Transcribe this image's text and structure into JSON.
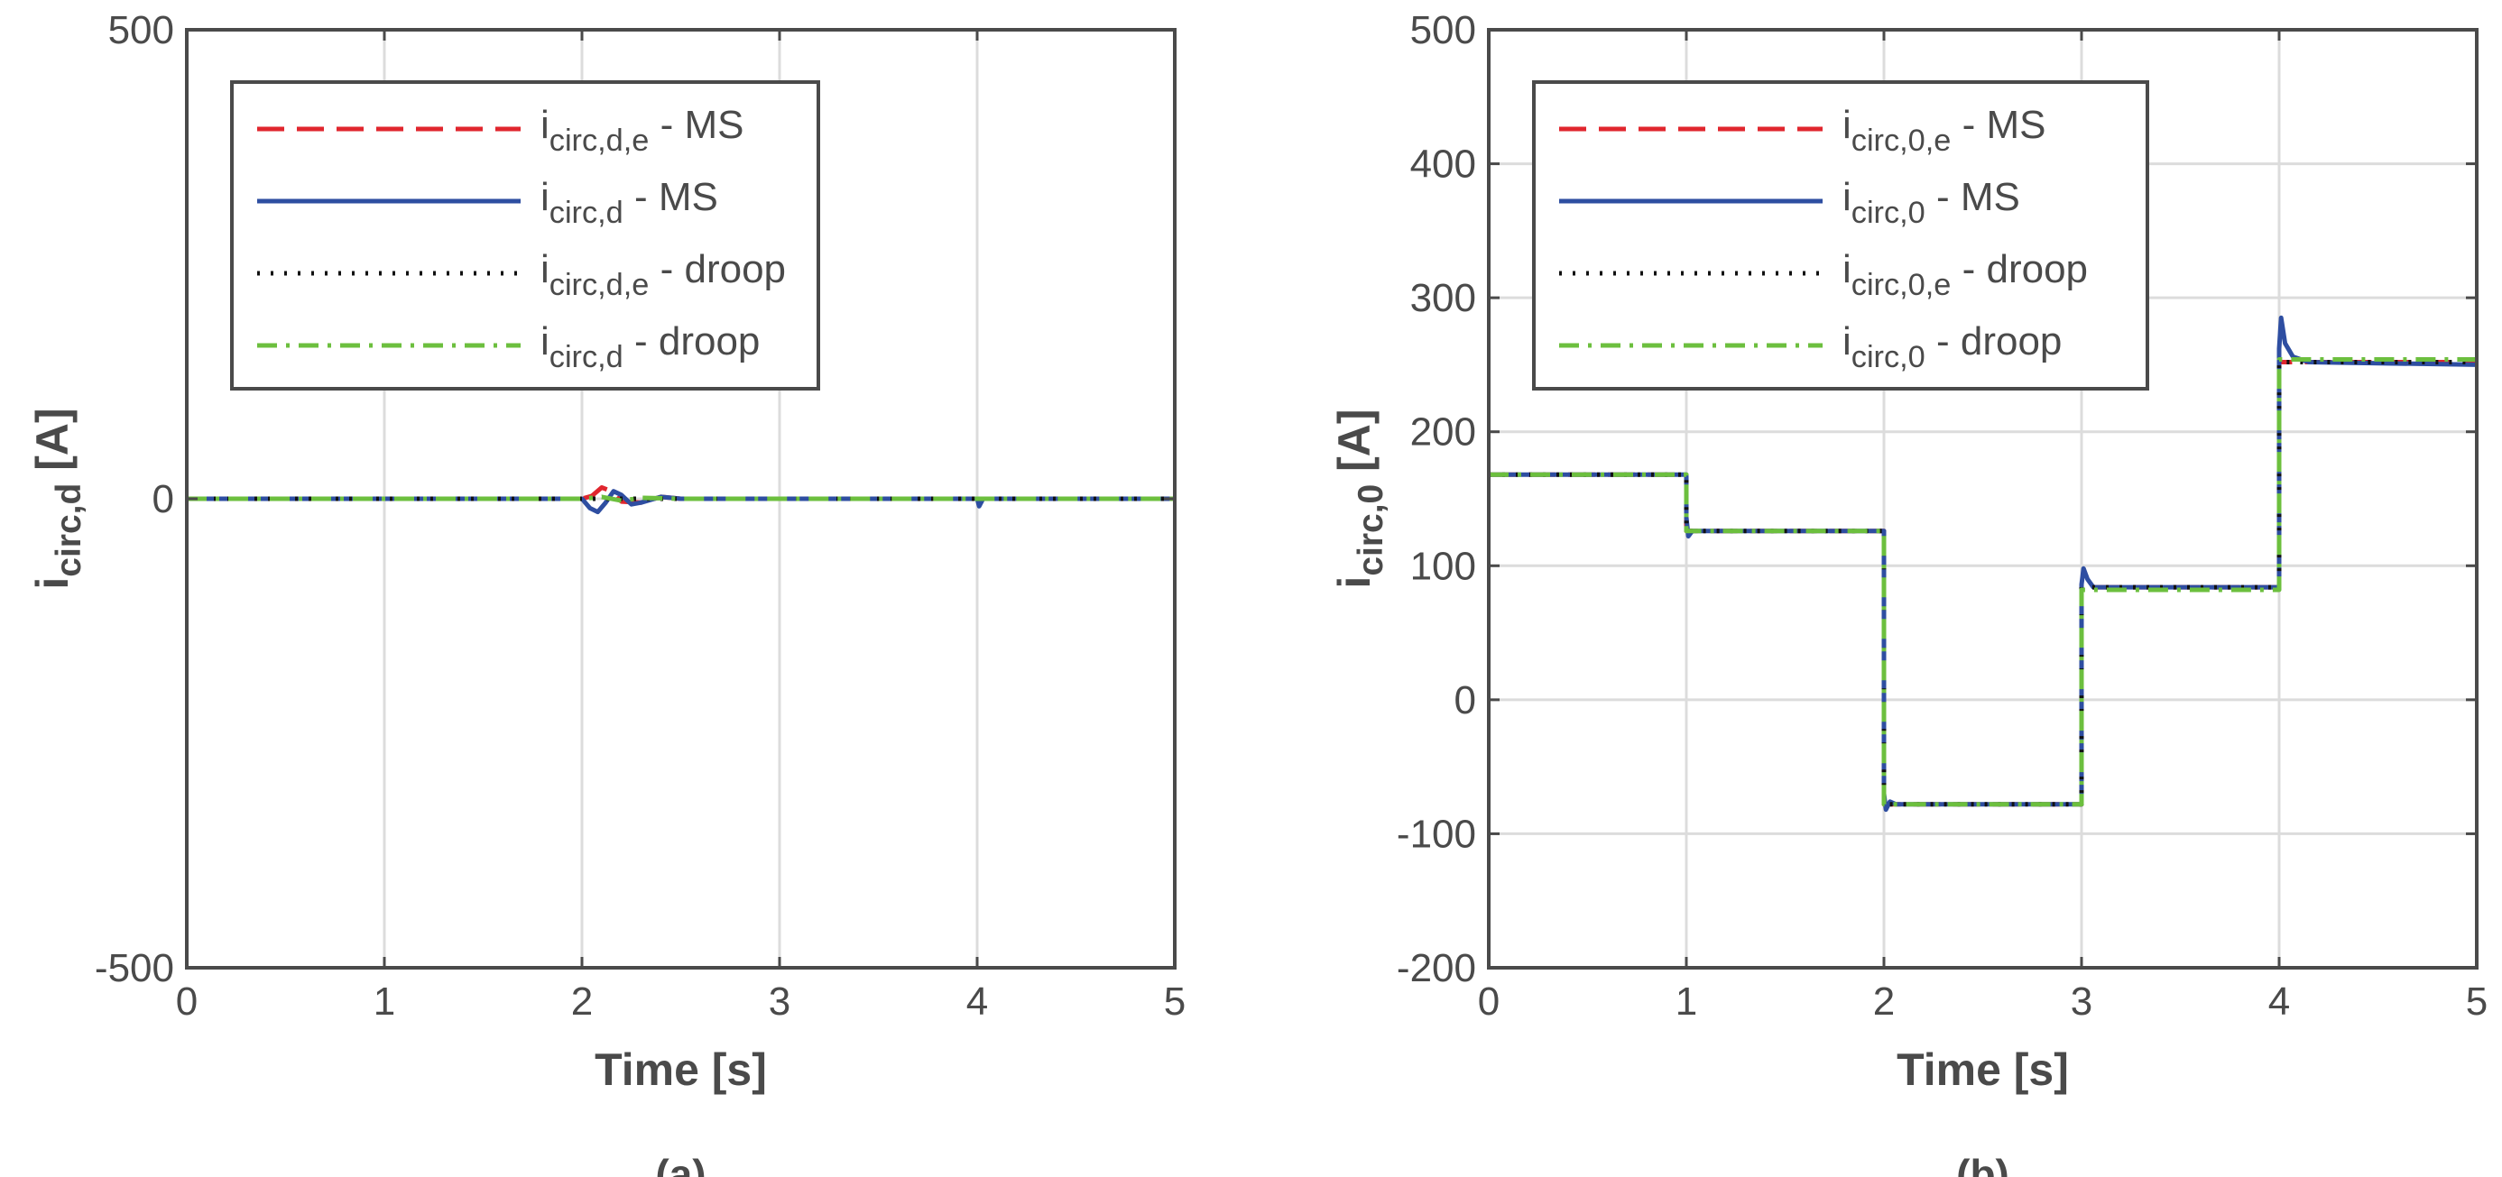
{
  "chart_data": [
    {
      "type": "line",
      "panel_label": "(a)",
      "xlabel": "Time [s]",
      "ylabel": {
        "main": "i",
        "sub": "circ,d",
        "unit": " [A]"
      },
      "xlim": [
        0,
        5
      ],
      "ylim": [
        -500,
        500
      ],
      "xticks": [
        0,
        1,
        2,
        3,
        4,
        5
      ],
      "yticks": [
        -500,
        0,
        500
      ],
      "xtick_labels": [
        "0",
        "1",
        "2",
        "3",
        "4",
        "5"
      ],
      "ytick_labels": [
        "-500",
        "0",
        "500"
      ],
      "grid": true,
      "legend_position": "top-left",
      "series": [
        {
          "name": {
            "main": "i",
            "sub": "circ,d,e",
            "suffix": " - MS"
          },
          "style": "dashed",
          "color": "#e0262e",
          "x": [
            0,
            2.0,
            2.05,
            2.1,
            2.15,
            2.2,
            2.3,
            2.4,
            2.5,
            3.0,
            4.0,
            5.0
          ],
          "y": [
            0,
            0,
            3,
            12,
            8,
            -3,
            -4,
            2,
            0,
            0,
            0,
            0
          ]
        },
        {
          "name": {
            "main": "i",
            "sub": "circ,d",
            "suffix": " - MS"
          },
          "style": "solid",
          "color": "#2e4ea1",
          "x": [
            0,
            2.0,
            2.04,
            2.08,
            2.12,
            2.16,
            2.2,
            2.25,
            2.3,
            2.4,
            2.5,
            3.0,
            4.0,
            4.01,
            4.03,
            5.0
          ],
          "y": [
            0,
            0,
            -10,
            -14,
            -4,
            8,
            4,
            -6,
            -4,
            2,
            0,
            0,
            0,
            -8,
            0,
            0
          ]
        },
        {
          "name": {
            "main": "i",
            "sub": "circ,d,e",
            "suffix": " - droop"
          },
          "style": "dotted",
          "color": "#111111",
          "x": [
            0,
            5
          ],
          "y": [
            0,
            0
          ]
        },
        {
          "name": {
            "main": "i",
            "sub": "circ,d",
            "suffix": " - droop"
          },
          "style": "dashdot",
          "color": "#6cbf3e",
          "x": [
            0,
            2.0,
            2.1,
            2.2,
            2.3,
            2.5,
            5.0
          ],
          "y": [
            0,
            0,
            2,
            -2,
            1,
            0,
            0
          ]
        }
      ]
    },
    {
      "type": "line",
      "panel_label": "(b)",
      "xlabel": "Time [s]",
      "ylabel": {
        "main": "i",
        "sub": "circ,0",
        "unit": " [A]"
      },
      "xlim": [
        0,
        5
      ],
      "ylim": [
        -200,
        500
      ],
      "xticks": [
        0,
        1,
        2,
        3,
        4,
        5
      ],
      "yticks": [
        -200,
        -100,
        0,
        100,
        200,
        300,
        400,
        500
      ],
      "xtick_labels": [
        "0",
        "1",
        "2",
        "3",
        "4",
        "5"
      ],
      "ytick_labels": [
        "-200",
        "-100",
        "0",
        "100",
        "200",
        "300",
        "400",
        "500"
      ],
      "grid": true,
      "legend_position": "top-left",
      "series": [
        {
          "name": {
            "main": "i",
            "sub": "circ,0,e",
            "suffix": " - MS"
          },
          "style": "dashed",
          "color": "#e0262e",
          "x": [
            0,
            1.0,
            1.0,
            2.0,
            2.0,
            3.0,
            3.0,
            4.0,
            4.0,
            5.0
          ],
          "y": [
            168,
            168,
            126,
            126,
            -78,
            -78,
            84,
            84,
            252,
            252
          ]
        },
        {
          "name": {
            "main": "i",
            "sub": "circ,0",
            "suffix": " - MS"
          },
          "style": "solid",
          "color": "#2e4ea1",
          "x": [
            0,
            1.0,
            1.0,
            1.01,
            1.03,
            2.0,
            2.0,
            2.01,
            2.03,
            2.06,
            3.0,
            3.0,
            3.01,
            3.03,
            3.06,
            4.0,
            4.0,
            4.01,
            4.03,
            4.07,
            4.15,
            5.0
          ],
          "y": [
            168,
            168,
            136,
            122,
            126,
            126,
            -70,
            -82,
            -76,
            -78,
            -78,
            86,
            98,
            90,
            84,
            84,
            262,
            285,
            266,
            256,
            252,
            250
          ]
        },
        {
          "name": {
            "main": "i",
            "sub": "circ,0,e",
            "suffix": " - droop"
          },
          "style": "dotted",
          "color": "#111111",
          "x": [
            0,
            1.0,
            1.0,
            2.0,
            2.0,
            3.0,
            3.0,
            4.0,
            4.0,
            5.0
          ],
          "y": [
            168,
            168,
            126,
            126,
            -78,
            -78,
            84,
            84,
            252,
            252
          ]
        },
        {
          "name": {
            "main": "i",
            "sub": "circ,0",
            "suffix": " - droop"
          },
          "style": "dashdot",
          "color": "#6cbf3e",
          "x": [
            0,
            1.0,
            1.0,
            2.0,
            2.0,
            3.0,
            3.0,
            4.0,
            4.0,
            5.0
          ],
          "y": [
            168,
            168,
            126,
            126,
            -78,
            -78,
            82,
            82,
            254,
            254
          ]
        }
      ]
    }
  ]
}
